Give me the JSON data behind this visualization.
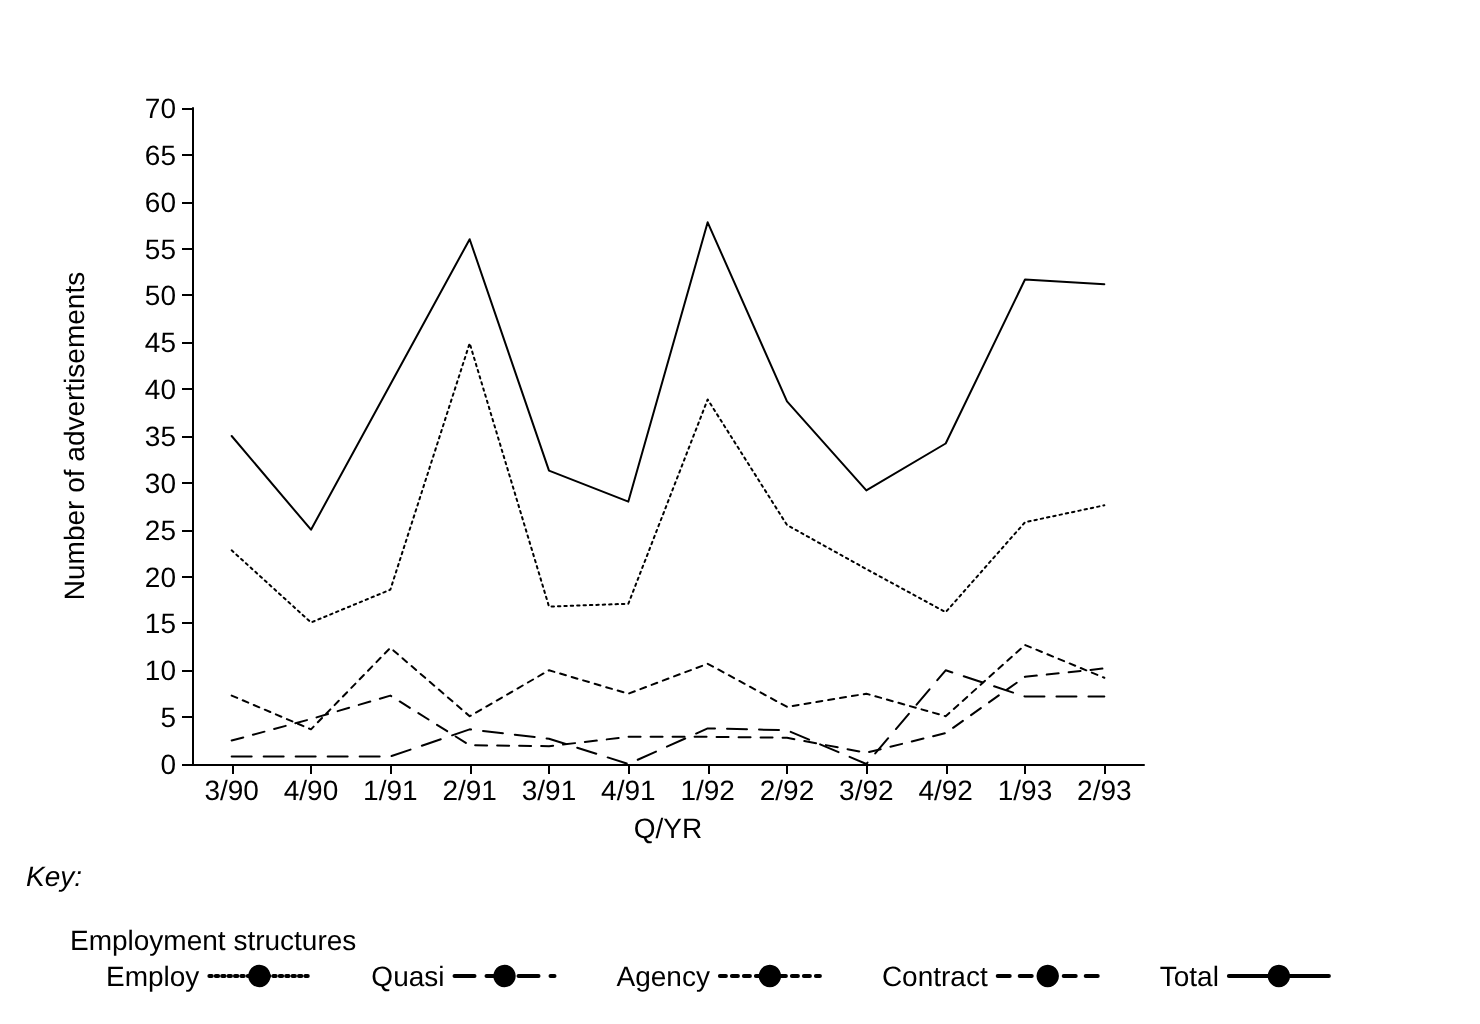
{
  "chart_data": {
    "type": "line",
    "xlabel": "Q/YR",
    "ylabel": "Number of advertisements",
    "legend_title": "Employment structures",
    "annotations": [
      "Key:"
    ],
    "categories": [
      "3/90",
      "4/90",
      "1/91",
      "2/91",
      "3/91",
      "4/91",
      "1/92",
      "2/92",
      "3/92",
      "4/92",
      "1/93",
      "2/93"
    ],
    "ylim": [
      0,
      70
    ],
    "yticks": [
      0,
      5,
      10,
      15,
      20,
      25,
      30,
      35,
      40,
      45,
      50,
      55,
      60,
      65,
      70
    ],
    "grid": false,
    "legend": "bottom",
    "marker": "none",
    "series": [
      {
        "name": "Employ",
        "color": "#000000",
        "line_style": "dotted",
        "values": [
          22.8,
          15.1,
          18.6,
          44.9,
          16.8,
          17.1,
          38.9,
          25.5,
          20.8,
          16.2,
          25.8,
          27.6
        ]
      },
      {
        "name": "Quasi",
        "color": "#000000",
        "line_style": "dashed",
        "values": [
          0.8,
          0.8,
          0.8,
          3.7,
          2.7,
          0,
          3.8,
          3.6,
          0,
          10,
          7.2,
          7.2
        ]
      },
      {
        "name": "Agency",
        "color": "#000000",
        "line_style": "dashed",
        "values": [
          7.3,
          3.7,
          12.4,
          5.1,
          10,
          7.5,
          10.7,
          6.1,
          7.5,
          5.1,
          12.7,
          9.2
        ]
      },
      {
        "name": "Contract",
        "color": "#000000",
        "line_style": "dashed",
        "values": [
          2.5,
          4.8,
          7.3,
          2,
          1.9,
          2.9,
          2.9,
          2.8,
          1.2,
          3.3,
          9.3,
          10.2
        ]
      },
      {
        "name": "Total",
        "color": "#000000",
        "line_style": "solid",
        "values": [
          35,
          25,
          40.5,
          56,
          31.3,
          28,
          57.8,
          38.7,
          29.2,
          34.2,
          51.7,
          51.2
        ]
      }
    ]
  }
}
